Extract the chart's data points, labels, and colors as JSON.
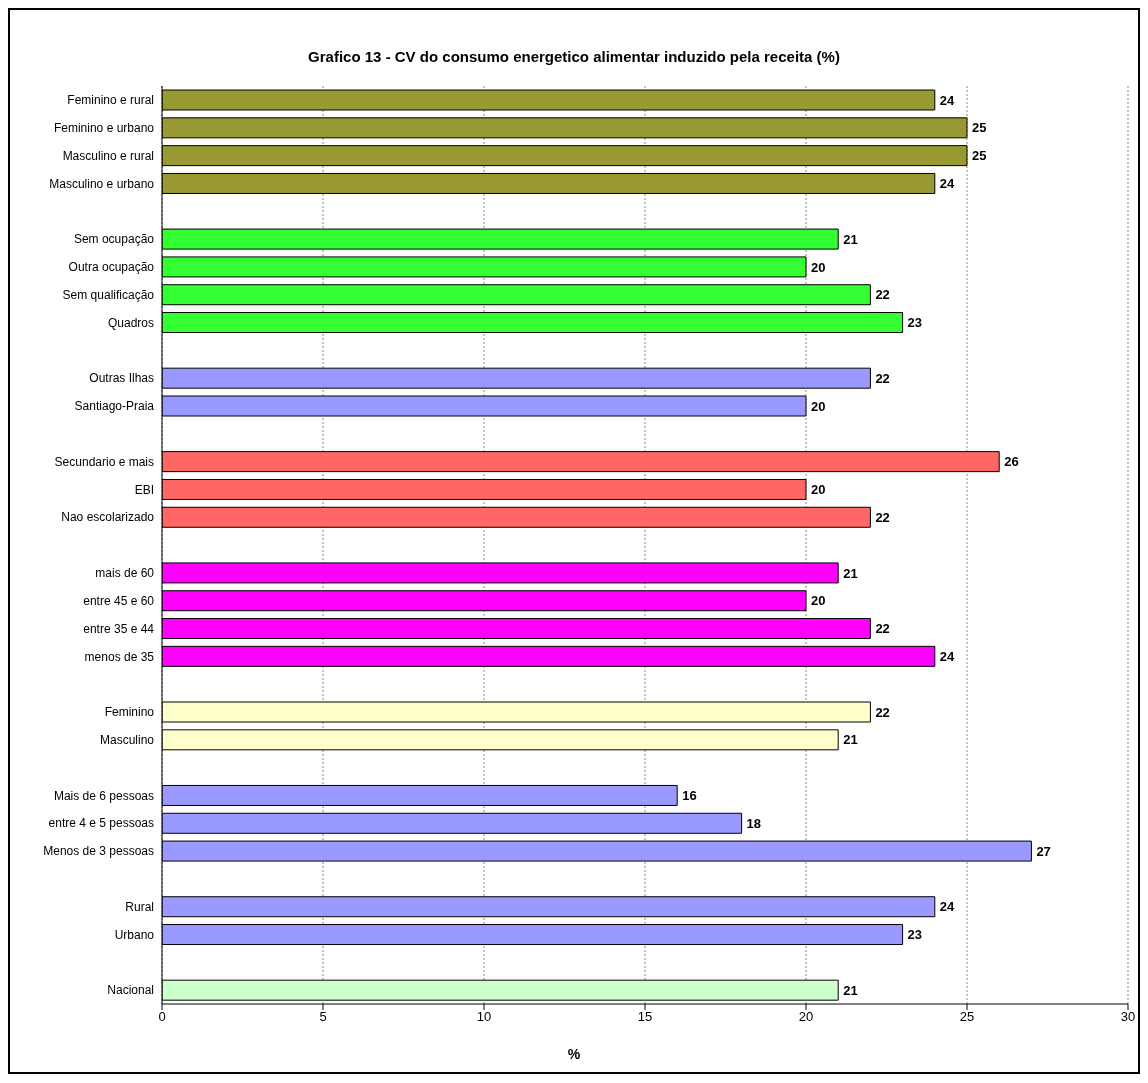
{
  "chart_data": {
    "type": "bar",
    "orientation": "horizontal",
    "title": "Grafico 13 - CV do consumo energetico alimentar induzido pela receita  (%)",
    "xlabel": "%",
    "categories": [
      "Feminino e rural",
      "Feminino e urbano",
      "Masculino e rural",
      "Masculino e urbano",
      null,
      "Sem ocupação",
      "Outra ocupação",
      "Sem qualificação",
      "Quadros",
      null,
      "Outras Ilhas",
      "Santiago-Praia",
      null,
      "Secundario e mais",
      "EBI",
      "Nao escolarizado",
      null,
      "mais de 60",
      "entre 45 e 60",
      "entre 35 e 44",
      "menos de 35",
      null,
      "Feminino",
      "Masculino",
      null,
      "Mais de 6 pessoas",
      "entre 4 e 5 pessoas",
      "Menos de 3 pessoas",
      null,
      "Rural",
      "Urbano",
      null,
      "Nacional"
    ],
    "values": [
      24,
      25,
      25,
      24,
      null,
      21,
      20,
      22,
      23,
      null,
      22,
      20,
      null,
      26,
      20,
      22,
      null,
      21,
      20,
      22,
      24,
      null,
      22,
      21,
      null,
      16,
      18,
      27,
      null,
      24,
      23,
      null,
      21
    ],
    "colors": [
      "#999933",
      "#999933",
      "#999933",
      "#999933",
      null,
      "#33ff33",
      "#33ff33",
      "#33ff33",
      "#33ff33",
      null,
      "#9999ff",
      "#9999ff",
      null,
      "#ff6666",
      "#ff6666",
      "#ff6666",
      null,
      "#ff00ff",
      "#ff00ff",
      "#ff00ff",
      "#ff00ff",
      null,
      "#ffffcc",
      "#ffffcc",
      null,
      "#9999ff",
      "#9999ff",
      "#9999ff",
      null,
      "#9999ff",
      "#9999ff",
      null,
      "#ccffcc"
    ],
    "xlim": [
      0,
      30
    ],
    "xticks": [
      0,
      5,
      10,
      15,
      20,
      25,
      30
    ],
    "grid": "x",
    "data_labels": true,
    "legend": false
  }
}
